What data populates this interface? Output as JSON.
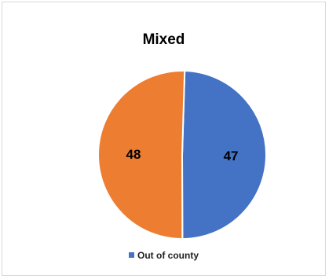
{
  "chart_data": {
    "type": "pie",
    "title": "Mixed",
    "slices": [
      {
        "label": "Out of county",
        "value": 47,
        "color": "#4472C4"
      },
      {
        "value": 48,
        "color": "#ED7D31"
      }
    ],
    "legend": {
      "position": "bottom",
      "entries": [
        {
          "label": "Out of county",
          "color": "#4472C4"
        }
      ]
    },
    "data_labels": true
  }
}
